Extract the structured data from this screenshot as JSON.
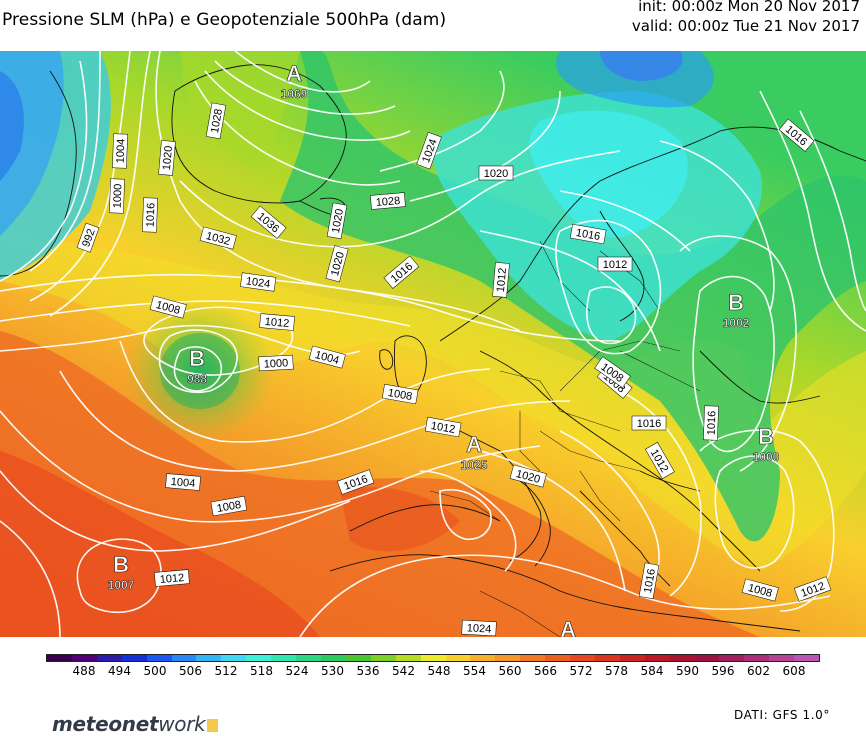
{
  "header": {
    "title": "Pressione SLM (hPa) e Geopotenziale 500hPa (dam)",
    "init": "init: 00:00z Mon 20 Nov 2017",
    "valid": "valid: 00:00z Tue 21 Nov 2017"
  },
  "map": {
    "isobar_labels": [
      {
        "text": "1004"
      },
      {
        "text": "1000"
      },
      {
        "text": "992"
      },
      {
        "text": "1020"
      },
      {
        "text": "1016"
      },
      {
        "text": "1028"
      },
      {
        "text": "1032"
      },
      {
        "text": "1036"
      },
      {
        "text": "1024"
      },
      {
        "text": "1028"
      },
      {
        "text": "1020"
      },
      {
        "text": "1020"
      },
      {
        "text": "1016"
      },
      {
        "text": "1024"
      },
      {
        "text": "1012"
      },
      {
        "text": "1008"
      },
      {
        "text": "1012"
      },
      {
        "text": "1004"
      },
      {
        "text": "1000"
      },
      {
        "text": "1004"
      },
      {
        "text": "1008"
      },
      {
        "text": "1012"
      },
      {
        "text": "1016"
      },
      {
        "text": "1012"
      },
      {
        "text": "1008"
      },
      {
        "text": "1020"
      },
      {
        "text": "1016"
      },
      {
        "text": "1012"
      },
      {
        "text": "1008"
      },
      {
        "text": "1016"
      },
      {
        "text": "1016"
      },
      {
        "text": "1012"
      },
      {
        "text": "1024"
      },
      {
        "text": "1016"
      },
      {
        "text": "1012"
      },
      {
        "text": "1008"
      },
      {
        "text": "1008"
      },
      {
        "text": "1016"
      },
      {
        "text": "1020"
      },
      {
        "text": "1016"
      }
    ],
    "pressure_centers": [
      {
        "symbol": "A",
        "value": "1069"
      },
      {
        "symbol": "B",
        "value": "988"
      },
      {
        "symbol": "B",
        "value": "1007"
      },
      {
        "symbol": "A",
        "value": "1025"
      },
      {
        "symbol": "B",
        "value": "1002"
      },
      {
        "symbol": "B",
        "value": "1000"
      },
      {
        "symbol": "A",
        "value": ""
      }
    ]
  },
  "legend": {
    "ticks": [
      "488",
      "494",
      "500",
      "506",
      "512",
      "518",
      "524",
      "530",
      "536",
      "542",
      "548",
      "554",
      "560",
      "566",
      "572",
      "578",
      "584",
      "590",
      "596",
      "602",
      "608"
    ],
    "colors": [
      "#3a0050",
      "#520078",
      "#2c1aa8",
      "#1530d8",
      "#1e56f0",
      "#2a88f4",
      "#35b4f4",
      "#3ed8f2",
      "#3ef0d8",
      "#2ee8b0",
      "#28d884",
      "#2cc860",
      "#4ac430",
      "#7ed028",
      "#b8dc22",
      "#ecec28",
      "#f8d02a",
      "#f8b028",
      "#f49628",
      "#f07a24",
      "#ec6020",
      "#e64820",
      "#dc3420",
      "#cc2220",
      "#bc1824",
      "#aa1430",
      "#9a1440",
      "#a0205c",
      "#ac3078",
      "#b44494",
      "#b856b4"
    ]
  },
  "footer": {
    "brand_main": "meteonet",
    "brand_tail": "work",
    "source": "DATI: GFS 1.0°"
  }
}
